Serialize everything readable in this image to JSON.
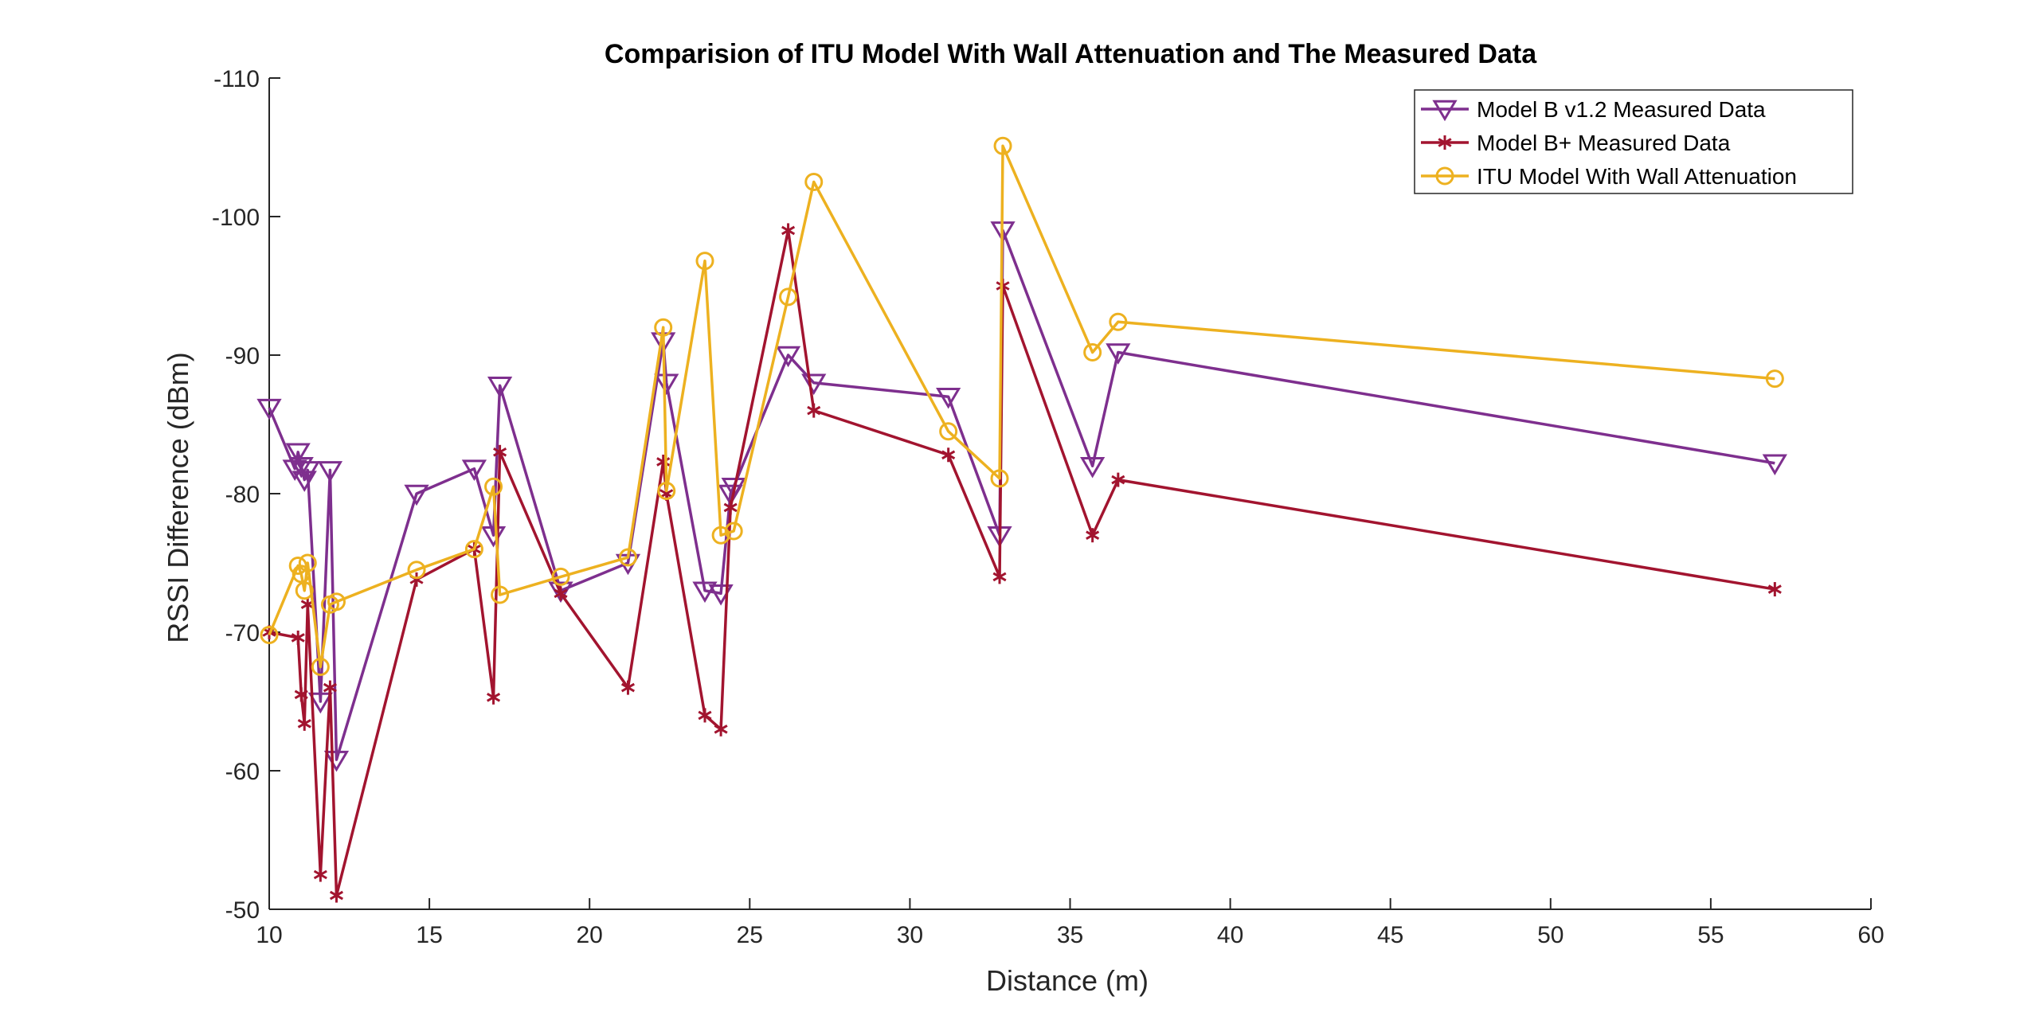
{
  "chart_data": {
    "type": "line",
    "title": "Comparision of ITU Model With Wall Attenuation and The Measured Data",
    "xlabel": "Distance (m)",
    "ylabel": "RSSI Difference (dBm)",
    "xlim": [
      10,
      60
    ],
    "ylim": [
      -50,
      -110
    ],
    "y_axis_reversed": true,
    "xticks": [
      10,
      15,
      20,
      25,
      30,
      35,
      40,
      45,
      50,
      55,
      60
    ],
    "yticks": [
      -50,
      -60,
      -70,
      -80,
      -90,
      -100,
      -110
    ],
    "xtick_labels": [
      "10",
      "15",
      "20",
      "25",
      "30",
      "35",
      "40",
      "45",
      "50",
      "55",
      "60"
    ],
    "ytick_labels": [
      "-50",
      "-60",
      "-70",
      "-80",
      "-90",
      "-100",
      "-110"
    ],
    "grid": false,
    "legend_position": "top-right",
    "series": [
      {
        "name": "Model B v1.2 Measured Data",
        "color": "#7E2F8E",
        "marker": "triangle-down",
        "x": [
          10.0,
          10.8,
          10.9,
          11.0,
          11.1,
          11.2,
          11.6,
          11.9,
          12.1,
          14.6,
          16.4,
          17.0,
          17.2,
          19.1,
          21.2,
          22.3,
          22.4,
          23.6,
          24.1,
          24.4,
          24.5,
          26.2,
          27.0,
          31.2,
          32.8,
          32.9,
          35.7,
          36.5,
          57.0
        ],
        "y": [
          -86.2,
          -81.8,
          -83.0,
          -82.0,
          -81.0,
          -81.7,
          -65.0,
          -81.7,
          -60.8,
          -80.0,
          -81.8,
          -77.0,
          -87.8,
          -73.0,
          -75.0,
          -91.0,
          -88.0,
          -73.0,
          -72.8,
          -80.0,
          -80.5,
          -90.0,
          -88.0,
          -87.0,
          -77.0,
          -99.0,
          -82.0,
          -90.2,
          -82.2
        ]
      },
      {
        "name": "Model B+ Measured Data",
        "color": "#A2142F",
        "marker": "asterisk",
        "x": [
          10.0,
          10.9,
          11.0,
          11.1,
          11.2,
          11.6,
          11.9,
          12.1,
          14.6,
          16.4,
          17.0,
          17.2,
          19.1,
          21.2,
          22.3,
          22.4,
          23.6,
          24.1,
          24.4,
          26.2,
          27.0,
          31.2,
          32.8,
          32.9,
          35.7,
          36.5,
          57.0
        ],
        "y": [
          -70.0,
          -69.6,
          -65.5,
          -63.4,
          -72.0,
          -52.5,
          -66.0,
          -51.0,
          -73.8,
          -76.0,
          -65.3,
          -83.0,
          -72.8,
          -66.0,
          -82.3,
          -80.0,
          -64.0,
          -63.0,
          -79.0,
          -99.0,
          -86.0,
          -82.8,
          -74.0,
          -95.0,
          -77.0,
          -81.0,
          -73.1
        ]
      },
      {
        "name": "ITU Model With Wall Attenuation",
        "color": "#EDB120",
        "marker": "circle",
        "x": [
          10.0,
          10.9,
          11.0,
          11.1,
          11.2,
          11.6,
          11.9,
          12.1,
          14.6,
          16.4,
          17.0,
          17.2,
          19.1,
          21.2,
          22.3,
          22.4,
          23.6,
          24.1,
          24.5,
          26.2,
          27.0,
          31.2,
          32.8,
          32.9,
          35.7,
          36.5,
          57.0
        ],
        "y": [
          -69.8,
          -74.8,
          -74.2,
          -73.0,
          -75.0,
          -67.5,
          -72.0,
          -72.2,
          -74.5,
          -76.0,
          -80.5,
          -72.7,
          -74.0,
          -75.4,
          -92.0,
          -80.2,
          -96.8,
          -77.0,
          -77.3,
          -94.2,
          -102.5,
          -84.5,
          -81.1,
          -105.1,
          -90.2,
          -92.4,
          -88.3
        ]
      }
    ]
  }
}
